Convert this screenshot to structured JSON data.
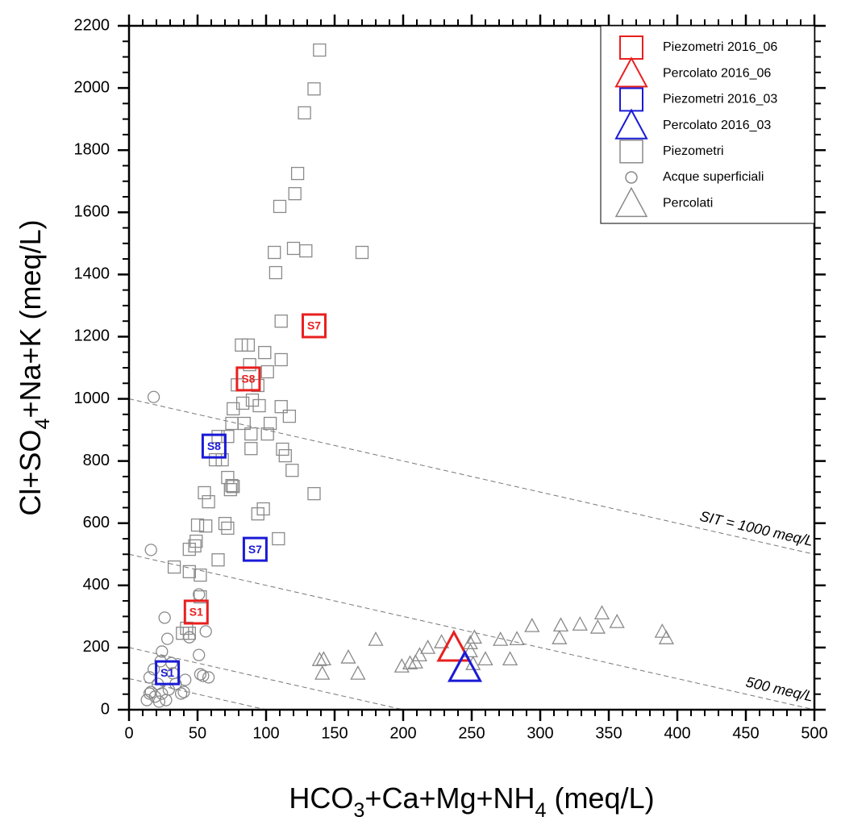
{
  "chart_data": {
    "type": "scatter",
    "x_label": "HCO3+Ca+Mg+NH4 (meq/L)",
    "y_label": "Cl+SO4+Na+K (meq/L)",
    "xlim": [
      0,
      500
    ],
    "ylim": [
      0,
      2200
    ],
    "xticks": [
      0,
      50,
      100,
      150,
      200,
      250,
      300,
      350,
      400,
      450,
      500
    ],
    "yticks": [
      0,
      200,
      400,
      600,
      800,
      1000,
      1200,
      1400,
      1600,
      1800,
      2000,
      2200
    ],
    "legend": "upper right",
    "reference_lines": [
      {
        "sum": 1000,
        "label": "SIT = 1000 meq/L"
      },
      {
        "sum": 500,
        "label": "500 meq/L"
      },
      {
        "sum": 200
      },
      {
        "sum": 100
      }
    ],
    "series": [
      {
        "name": "Piezometri 2016_06",
        "color": "#e8201f",
        "marker": "square",
        "size": "large",
        "x": [
          135,
          87,
          49
        ],
        "y": [
          1235,
          1064,
          314
        ],
        "point_labels": [
          "S7",
          "S8",
          "S1"
        ]
      },
      {
        "name": "Percolato 2016_06",
        "color": "#e8201f",
        "marker": "triangle",
        "size": "large",
        "x": [
          237
        ],
        "y": [
          200
        ]
      },
      {
        "name": "Piezometri 2016_03",
        "color": "#1a1ad6",
        "marker": "square",
        "size": "large",
        "x": [
          62,
          92,
          28
        ],
        "y": [
          848,
          516,
          119
        ],
        "point_labels": [
          "S8",
          "S7",
          "S1"
        ]
      },
      {
        "name": "Percolato 2016_03",
        "color": "#1a1ad6",
        "marker": "triangle",
        "size": "large",
        "x": [
          245
        ],
        "y": [
          135
        ]
      },
      {
        "name": "Piezometri",
        "color": "#8a8a8a",
        "marker": "square",
        "size": "small",
        "x": [
          139,
          135,
          128,
          123,
          121,
          110,
          106,
          107,
          129,
          120,
          170,
          111,
          82,
          87,
          99,
          111,
          88,
          101,
          79,
          94,
          83,
          90,
          95,
          111,
          76,
          75,
          84,
          103,
          117,
          89,
          101,
          72,
          65,
          112,
          114,
          89,
          119,
          63,
          68,
          72,
          75,
          74,
          76,
          55,
          58,
          135,
          98,
          94,
          70,
          72,
          50,
          56,
          109,
          49,
          48,
          65,
          44,
          33,
          44,
          52,
          52,
          42,
          44,
          39
        ],
        "y": [
          2122,
          1997,
          1920,
          1725,
          1660,
          1619,
          1471,
          1406,
          1476,
          1484,
          1471,
          1250,
          1173,
          1173,
          1149,
          1126,
          1110,
          1087,
          1045,
          1043,
          986,
          996,
          978,
          975,
          968,
          921,
          921,
          921,
          944,
          887,
          887,
          879,
          879,
          838,
          817,
          840,
          770,
          804,
          804,
          747,
          721,
          708,
          718,
          698,
          669,
          695,
          646,
          630,
          599,
          584,
          594,
          591,
          550,
          542,
          527,
          482,
          516,
          459,
          444,
          433,
          363,
          262,
          246,
          246
        ]
      },
      {
        "name": "Acque superficiali",
        "color": "#8a8a8a",
        "marker": "circle",
        "size": "small",
        "x": [
          18,
          16,
          26,
          51,
          28,
          44,
          56,
          51,
          23,
          15,
          18,
          21,
          16,
          13,
          19,
          24,
          29,
          34,
          38,
          41,
          40,
          52,
          58,
          54,
          32,
          24,
          31,
          22,
          27,
          15
        ],
        "y": [
          1006,
          514,
          296,
          371,
          228,
          233,
          252,
          176,
          156,
          104,
          130,
          83,
          57,
          31,
          42,
          52,
          65,
          83,
          52,
          96,
          57,
          114,
          104,
          109,
          117,
          187,
          150,
          26,
          31,
          52
        ]
      },
      {
        "name": "Percolati",
        "color": "#8a8a8a",
        "marker": "triangle",
        "size": "small",
        "x": [
          139,
          142,
          141,
          160,
          167,
          180,
          199,
          205,
          209,
          212,
          218,
          228,
          249,
          252,
          260,
          249,
          271,
          278,
          283,
          294,
          315,
          314,
          329,
          342,
          345,
          356,
          389,
          392,
          251
        ],
        "y": [
          161,
          163,
          117,
          169,
          117,
          226,
          140,
          150,
          153,
          176,
          200,
          218,
          215,
          233,
          163,
          189,
          226,
          163,
          228,
          270,
          272,
          231,
          275,
          265,
          311,
          283,
          252,
          231,
          148
        ]
      }
    ]
  }
}
